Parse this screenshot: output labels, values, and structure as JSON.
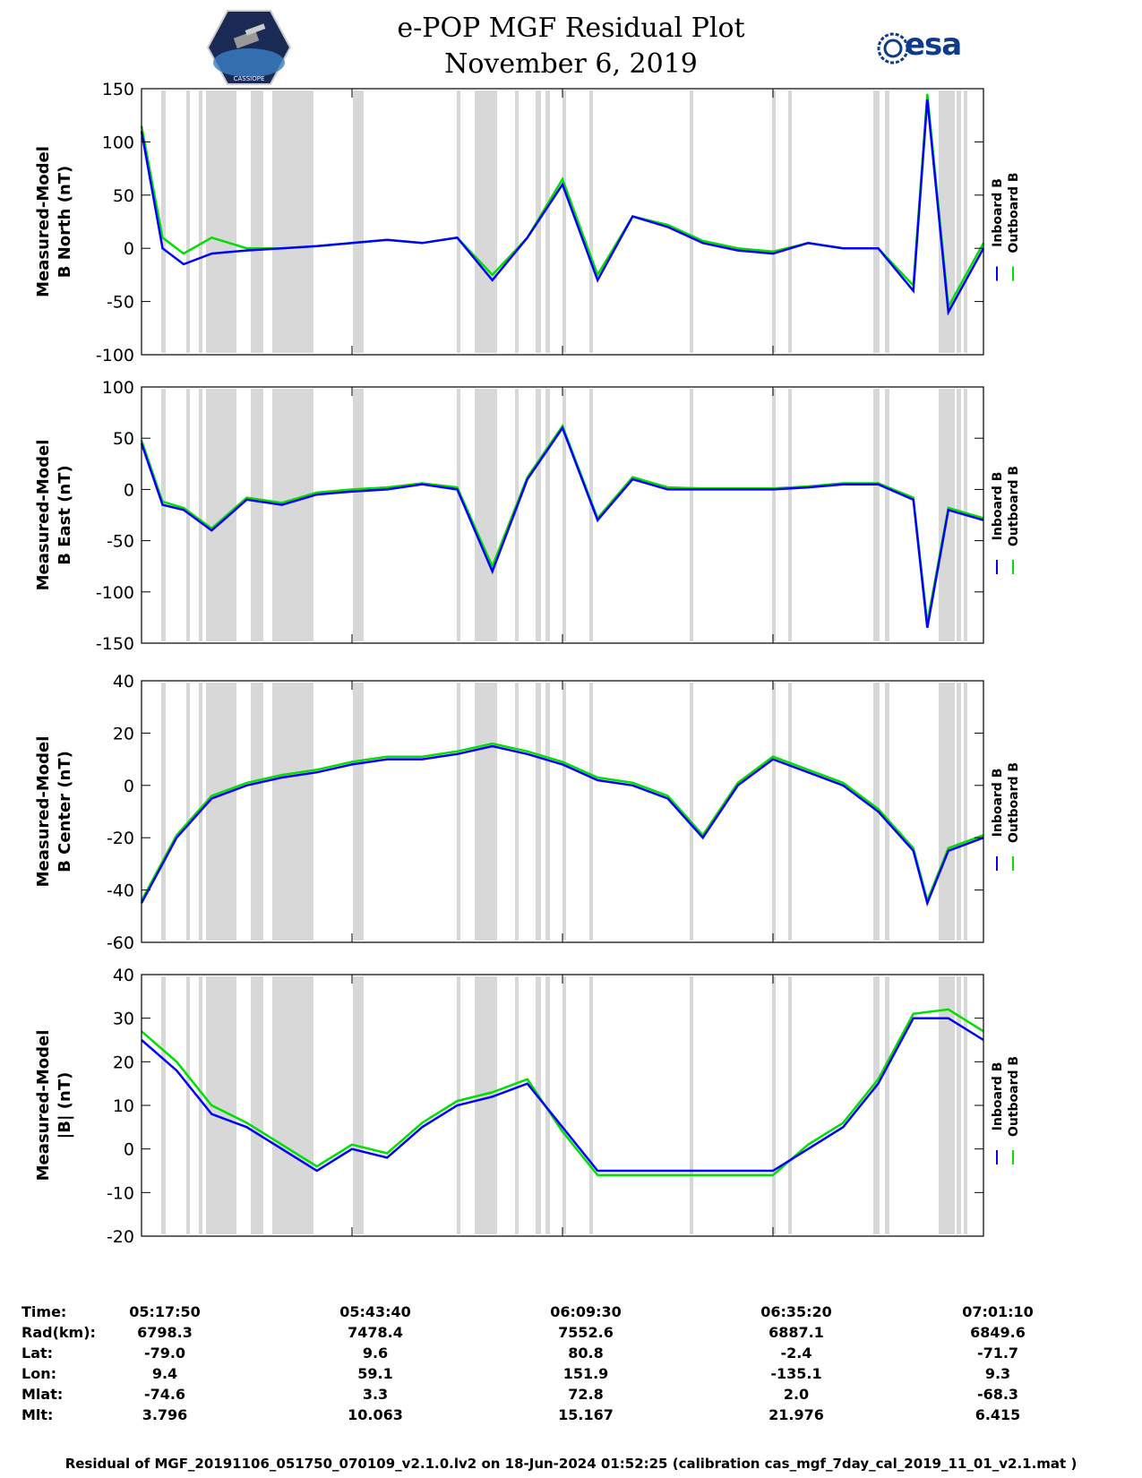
{
  "header": {
    "title_line1": "e-POP MGF Residual Plot",
    "title_line2": "November 6, 2019",
    "logo_left_text": "CASSIOPE",
    "logo_right_text": "esa"
  },
  "legend": {
    "inboard": "Inboard B",
    "outboard": "Outboard B",
    "inboard_color": "#0000ff",
    "outboard_color": "#00e000"
  },
  "colors": {
    "inboard": "#0000ff",
    "outboard": "#00e000",
    "shade": "#d8d8d8"
  },
  "chart_data": [
    {
      "type": "line",
      "ylabel_line1": "Measured-Model",
      "ylabel_line2": "B North (nT)",
      "ylim": [
        -100,
        150
      ],
      "yticks": [
        -100,
        -50,
        0,
        50,
        100,
        150
      ],
      "xticks": [
        "05:17:50",
        "05:43:40",
        "06:09:30",
        "06:35:20",
        "07:01:10"
      ],
      "series": [
        {
          "name": "Inboard B",
          "x": [
            0,
            3,
            6,
            10,
            15,
            20,
            25,
            30,
            35,
            40,
            45,
            50,
            55,
            60,
            65,
            70,
            75,
            80,
            85,
            90,
            95,
            100,
            105,
            110,
            112,
            115,
            120
          ],
          "y": [
            110,
            0,
            -15,
            -5,
            -2,
            0,
            2,
            5,
            8,
            5,
            10,
            -30,
            10,
            60,
            -30,
            30,
            20,
            5,
            -2,
            -5,
            5,
            0,
            0,
            -40,
            140,
            -60,
            0
          ]
        },
        {
          "name": "Outboard B",
          "x": [
            0,
            3,
            6,
            10,
            15,
            20,
            25,
            30,
            35,
            40,
            45,
            50,
            55,
            60,
            65,
            70,
            75,
            80,
            85,
            90,
            95,
            100,
            105,
            110,
            112,
            115,
            120
          ],
          "y": [
            115,
            10,
            -5,
            10,
            0,
            0,
            2,
            5,
            8,
            5,
            10,
            -25,
            10,
            65,
            -25,
            30,
            22,
            7,
            0,
            -3,
            5,
            0,
            0,
            -35,
            145,
            -55,
            5
          ]
        }
      ]
    },
    {
      "type": "line",
      "ylabel_line1": "Measured-Model",
      "ylabel_line2": "B East (nT)",
      "ylim": [
        -150,
        100
      ],
      "yticks": [
        -150,
        -100,
        -50,
        0,
        50,
        100
      ],
      "xticks": [
        "05:17:50",
        "05:43:40",
        "06:09:30",
        "06:35:20",
        "07:01:10"
      ],
      "series": [
        {
          "name": "Inboard B",
          "x": [
            0,
            3,
            6,
            10,
            15,
            20,
            25,
            30,
            35,
            40,
            45,
            50,
            55,
            60,
            65,
            70,
            75,
            80,
            85,
            90,
            95,
            100,
            105,
            110,
            112,
            115,
            120
          ],
          "y": [
            45,
            -15,
            -20,
            -40,
            -10,
            -15,
            -5,
            -2,
            0,
            5,
            0,
            -80,
            10,
            60,
            -30,
            10,
            0,
            0,
            0,
            0,
            2,
            5,
            5,
            -10,
            -135,
            -20,
            -30
          ]
        },
        {
          "name": "Outboard B",
          "x": [
            0,
            3,
            6,
            10,
            15,
            20,
            25,
            30,
            35,
            40,
            45,
            50,
            55,
            60,
            65,
            70,
            75,
            80,
            85,
            90,
            95,
            100,
            105,
            110,
            112,
            115,
            120
          ],
          "y": [
            48,
            -12,
            -18,
            -38,
            -8,
            -13,
            -3,
            0,
            2,
            6,
            2,
            -75,
            12,
            62,
            -28,
            12,
            2,
            1,
            1,
            1,
            3,
            6,
            6,
            -8,
            -130,
            -18,
            -28
          ]
        }
      ]
    },
    {
      "type": "line",
      "ylabel_line1": "Measured-Model",
      "ylabel_line2": "B Center (nT)",
      "ylim": [
        -60,
        40
      ],
      "yticks": [
        -60,
        -40,
        -20,
        0,
        20,
        40
      ],
      "xticks": [
        "05:17:50",
        "05:43:40",
        "06:09:30",
        "06:35:20",
        "07:01:10"
      ],
      "series": [
        {
          "name": "Inboard B",
          "x": [
            0,
            5,
            10,
            15,
            20,
            25,
            30,
            35,
            40,
            45,
            50,
            55,
            60,
            65,
            70,
            75,
            80,
            85,
            90,
            95,
            100,
            105,
            110,
            112,
            115,
            120
          ],
          "y": [
            -45,
            -20,
            -5,
            0,
            3,
            5,
            8,
            10,
            10,
            12,
            15,
            12,
            8,
            2,
            0,
            -5,
            -20,
            0,
            10,
            5,
            0,
            -10,
            -25,
            -45,
            -25,
            -20
          ]
        },
        {
          "name": "Outboard B",
          "x": [
            0,
            5,
            10,
            15,
            20,
            25,
            30,
            35,
            40,
            45,
            50,
            55,
            60,
            65,
            70,
            75,
            80,
            85,
            90,
            95,
            100,
            105,
            110,
            112,
            115,
            120
          ],
          "y": [
            -44,
            -19,
            -4,
            1,
            4,
            6,
            9,
            11,
            11,
            13,
            16,
            13,
            9,
            3,
            1,
            -4,
            -19,
            1,
            11,
            6,
            1,
            -9,
            -24,
            -44,
            -24,
            -19
          ]
        }
      ]
    },
    {
      "type": "line",
      "ylabel_line1": "Measured-Model",
      "ylabel_line2": "|B| (nT)",
      "ylim": [
        -20,
        40
      ],
      "yticks": [
        -20,
        -10,
        0,
        10,
        20,
        30,
        40
      ],
      "xticks": [
        "05:17:50",
        "05:43:40",
        "06:09:30",
        "06:35:20",
        "07:01:10"
      ],
      "series": [
        {
          "name": "Inboard B",
          "x": [
            0,
            5,
            10,
            15,
            20,
            25,
            30,
            35,
            40,
            45,
            50,
            55,
            60,
            65,
            70,
            75,
            80,
            85,
            90,
            95,
            100,
            105,
            110,
            115,
            120
          ],
          "y": [
            25,
            18,
            8,
            5,
            0,
            -5,
            0,
            -2,
            5,
            10,
            12,
            15,
            5,
            -5,
            -5,
            -5,
            -5,
            -5,
            -5,
            0,
            5,
            15,
            30,
            30,
            25
          ]
        },
        {
          "name": "Outboard B",
          "x": [
            0,
            5,
            10,
            15,
            20,
            25,
            30,
            35,
            40,
            45,
            50,
            55,
            60,
            65,
            70,
            75,
            80,
            85,
            90,
            95,
            100,
            105,
            110,
            115,
            120
          ],
          "y": [
            27,
            20,
            10,
            6,
            1,
            -4,
            1,
            -1,
            6,
            11,
            13,
            16,
            4,
            -6,
            -6,
            -6,
            -6,
            -6,
            -6,
            1,
            6,
            16,
            31,
            32,
            27
          ]
        }
      ]
    }
  ],
  "info": {
    "labels": [
      "Time:",
      "Rad(km):",
      "Lat:",
      "Lon:",
      "Mlat:",
      "Mlt:"
    ],
    "columns": [
      [
        "05:17:50",
        "6798.3",
        "-79.0",
        "9.4",
        "-74.6",
        "3.796"
      ],
      [
        "05:43:40",
        "7478.4",
        "9.6",
        "59.1",
        "3.3",
        "10.063"
      ],
      [
        "06:09:30",
        "7552.6",
        "80.8",
        "151.9",
        "72.8",
        "15.167"
      ],
      [
        "06:35:20",
        "6887.1",
        "-2.4",
        "-135.1",
        "2.0",
        "21.976"
      ],
      [
        "07:01:10",
        "6849.6",
        "-71.7",
        "9.3",
        "-68.3",
        "6.415"
      ]
    ]
  },
  "footer": "Residual of MGF_20191106_051750_070109_v2.1.0.lv2 on 18-Jun-2024 01:52:25 (calibration cas_mgf_7day_cal_2019_11_01_v2.1.mat )"
}
